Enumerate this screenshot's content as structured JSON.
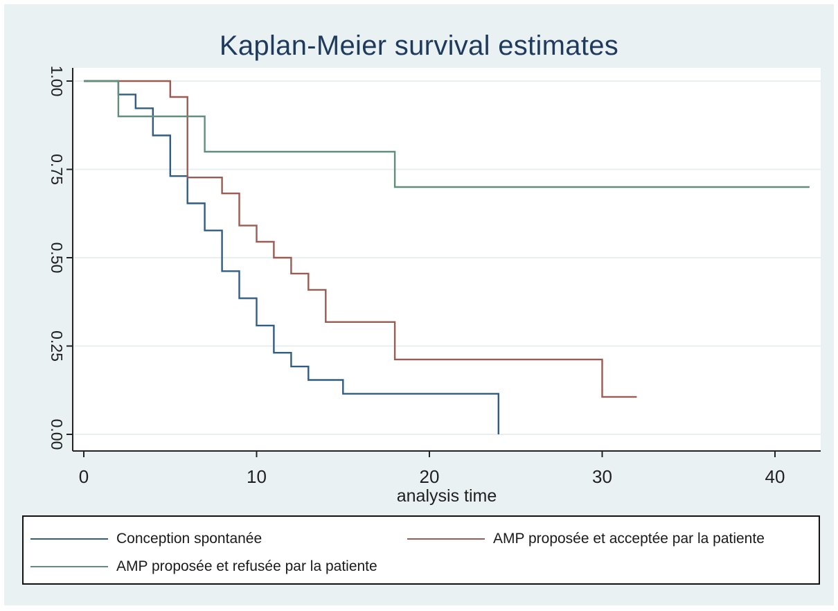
{
  "chart_data": {
    "type": "line",
    "title": "Kaplan-Meier survival estimates",
    "xlabel": "analysis time",
    "ylabel": "",
    "xlim": [
      0,
      42
    ],
    "ylim": [
      0,
      1
    ],
    "x_ticks": [
      "0",
      "10",
      "20",
      "30",
      "40"
    ],
    "y_ticks": [
      "0.00",
      "0.25",
      "0.50",
      "0.75",
      "1.00"
    ],
    "grid": true,
    "legend_position": "bottom",
    "series": [
      {
        "name": "Conception spontanée",
        "color": "#2f5d86",
        "step": true,
        "points": [
          [
            0,
            1.0
          ],
          [
            2,
            1.0
          ],
          [
            2,
            0.962
          ],
          [
            3,
            0.962
          ],
          [
            3,
            0.923
          ],
          [
            4,
            0.923
          ],
          [
            4,
            0.846
          ],
          [
            5,
            0.846
          ],
          [
            5,
            0.731
          ],
          [
            6,
            0.731
          ],
          [
            6,
            0.654
          ],
          [
            7,
            0.654
          ],
          [
            7,
            0.577
          ],
          [
            8,
            0.577
          ],
          [
            8,
            0.462
          ],
          [
            9,
            0.462
          ],
          [
            9,
            0.385
          ],
          [
            10,
            0.385
          ],
          [
            10,
            0.308
          ],
          [
            11,
            0.308
          ],
          [
            11,
            0.231
          ],
          [
            12,
            0.231
          ],
          [
            12,
            0.192
          ],
          [
            13,
            0.192
          ],
          [
            13,
            0.154
          ],
          [
            15,
            0.154
          ],
          [
            15,
            0.115
          ],
          [
            24,
            0.115
          ],
          [
            24,
            0.0
          ]
        ]
      },
      {
        "name": "AMP proposée et acceptée par la patiente",
        "color": "#9c5b52",
        "step": true,
        "points": [
          [
            0,
            1.0
          ],
          [
            5,
            1.0
          ],
          [
            5,
            0.955
          ],
          [
            6,
            0.955
          ],
          [
            6,
            0.727
          ],
          [
            8,
            0.727
          ],
          [
            8,
            0.682
          ],
          [
            9,
            0.682
          ],
          [
            9,
            0.591
          ],
          [
            10,
            0.591
          ],
          [
            10,
            0.545
          ],
          [
            11,
            0.545
          ],
          [
            11,
            0.5
          ],
          [
            12,
            0.5
          ],
          [
            12,
            0.455
          ],
          [
            13,
            0.455
          ],
          [
            13,
            0.409
          ],
          [
            14,
            0.409
          ],
          [
            14,
            0.318
          ],
          [
            18,
            0.318
          ],
          [
            18,
            0.212
          ],
          [
            30,
            0.212
          ],
          [
            30,
            0.106
          ],
          [
            32,
            0.106
          ]
        ]
      },
      {
        "name": "AMP proposée et refusée par la patiente",
        "color": "#5f8f7a",
        "step": true,
        "points": [
          [
            0,
            1.0
          ],
          [
            2,
            1.0
          ],
          [
            2,
            0.9
          ],
          [
            7,
            0.9
          ],
          [
            7,
            0.8
          ],
          [
            18,
            0.8
          ],
          [
            18,
            0.7
          ],
          [
            42,
            0.7
          ]
        ]
      }
    ]
  }
}
